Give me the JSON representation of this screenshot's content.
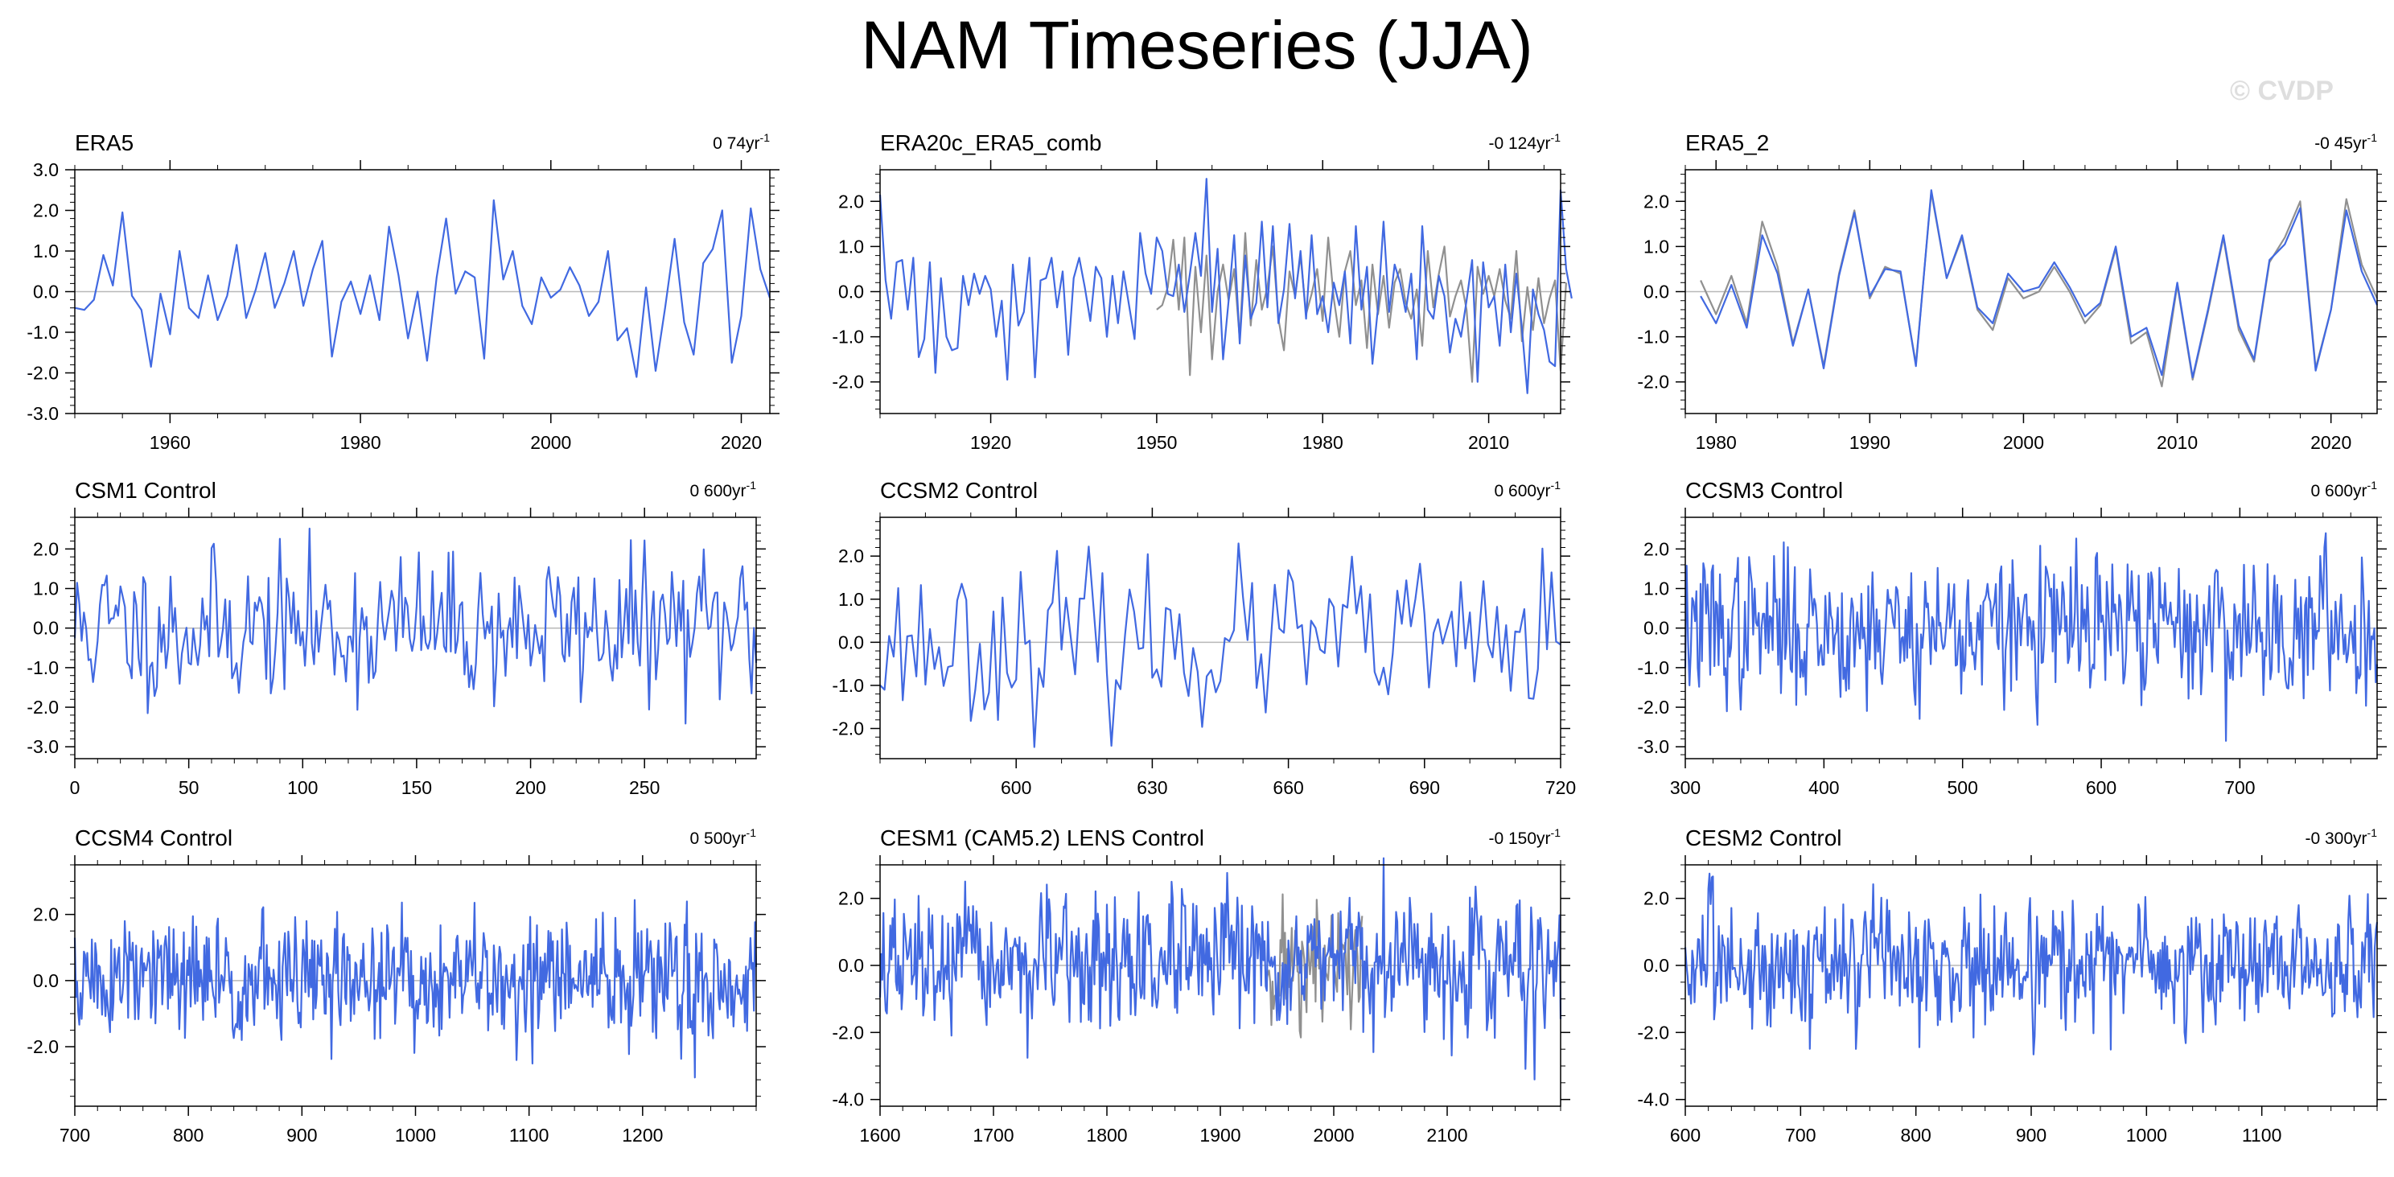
{
  "page": {
    "title": "NAM Timeseries (JJA)",
    "watermark": "© CVDP"
  },
  "colors": {
    "series_primary": "#4169e1",
    "series_secondary": "#909090",
    "zero_line": "#b8b8b8",
    "axis": "#000000"
  },
  "chart_data": [
    {
      "type": "line",
      "title": "ERA5",
      "trend": "0 74yr",
      "xlim": [
        1950,
        2023
      ],
      "ylim": [
        -3,
        3
      ],
      "xticks": [
        1960,
        1980,
        2000,
        2020
      ],
      "yticks": [
        -3,
        -2,
        -1,
        0,
        1,
        2,
        3
      ],
      "ytick_labels": [
        "-3.0",
        "-2.0",
        "-1.0",
        "0.0",
        "1.0",
        "2.0",
        "3.0"
      ],
      "x_start": 1950,
      "x_step": 1,
      "series": [
        {
          "values": [
            -0.4,
            -0.45,
            -0.2,
            0.9,
            0.15,
            1.95,
            -0.1,
            -0.45,
            -1.85,
            -0.05,
            -1.05,
            1.0,
            -0.4,
            -0.65,
            0.4,
            -0.7,
            -0.1,
            1.15,
            -0.65,
            0.05,
            0.95,
            -0.4,
            0.2,
            1.0,
            -0.35,
            0.55,
            1.25,
            -1.6,
            -0.25,
            0.25,
            -0.55,
            0.4,
            -0.7,
            1.6,
            0.4,
            -1.15,
            0.0,
            -1.7,
            0.35,
            1.8,
            -0.05,
            0.5,
            0.35,
            -1.65,
            2.25,
            0.3,
            1.0,
            -0.35,
            -0.8,
            0.35,
            -0.15,
            0.05,
            0.6,
            0.15,
            -0.6,
            -0.25,
            1.0,
            -1.2,
            -0.9,
            -2.1,
            0.1,
            -1.95,
            -0.4,
            1.3,
            -0.75,
            -1.55,
            0.7,
            1.05,
            2.0,
            -1.75,
            -0.6,
            2.05,
            0.55,
            -0.15
          ]
        }
      ]
    },
    {
      "type": "line",
      "title": "ERA20c_ERA5_comb",
      "trend": "-0 124yr",
      "xlim": [
        1900,
        2023
      ],
      "ylim": [
        -2.7,
        2.7
      ],
      "xticks": [
        1920,
        1950,
        1980,
        2010
      ],
      "yticks": [
        -2,
        -1,
        0,
        1,
        2
      ],
      "ytick_labels": [
        "-2.0",
        "-1.0",
        "0.0",
        "1.0",
        "2.0"
      ],
      "x_start": 1900,
      "x_step": 1,
      "series": [
        {
          "values": [
            2.15,
            0.25,
            -0.6,
            0.65,
            0.7,
            -0.4,
            0.75,
            -1.45,
            -1.05,
            0.65,
            -1.8,
            0.3,
            -1.0,
            -1.3,
            -1.25,
            0.35,
            -0.3,
            0.4,
            -0.05,
            0.35,
            0.05,
            -1.0,
            -0.2,
            -1.95,
            0.6,
            -0.75,
            -0.45,
            0.75,
            -1.9,
            0.25,
            0.3,
            0.75,
            -0.35,
            0.45,
            -1.4,
            0.3,
            0.75,
            0.1,
            -0.65,
            0.55,
            0.3,
            -1.0,
            0.35,
            -0.7,
            0.45,
            -0.3,
            -1.05,
            1.3,
            0.4,
            -0.05,
            1.2,
            0.9,
            -0.05,
            -0.1,
            0.6,
            -0.45,
            0.4,
            1.3,
            0.35,
            2.5,
            -0.45,
            0.95,
            -1.5,
            -0.2,
            1.25,
            -1.15,
            0.8,
            -0.6,
            -0.25,
            1.55,
            -0.35,
            1.45,
            -0.7,
            0.05,
            1.5,
            -0.15,
            0.9,
            -0.6,
            1.25,
            -0.5,
            -0.1,
            -0.9,
            0.2,
            -0.3,
            0.45,
            -1.15,
            1.45,
            -0.4,
            0.55,
            -1.6,
            -0.35,
            1.55,
            -0.45,
            0.6,
            0.2,
            -0.45,
            0.4,
            -1.5,
            1.45,
            -0.4,
            -0.6,
            0.35,
            -0.1,
            -1.35,
            -0.6,
            -1.0,
            -0.2,
            0.7,
            -2.0,
            0.65,
            -0.35,
            -0.1,
            -1.2,
            0.6,
            -0.9,
            0.4,
            -0.8,
            -2.25,
            0.05,
            -0.5,
            -0.85,
            -1.55,
            -1.65,
            2.25,
            0.5,
            -0.15
          ]
        },
        {
          "values": [
            -0.4,
            -0.3,
            0.1,
            1.15,
            -0.4,
            1.2,
            -1.85,
            0.55,
            -0.9,
            0.8,
            -1.5,
            0.0,
            0.6,
            -0.2,
            0.5,
            -1.05,
            1.3,
            -0.75,
            0.7,
            -0.4,
            0.1,
            1.0,
            -0.6,
            -1.3,
            0.45,
            -0.1,
            0.8,
            -0.5,
            -0.05,
            0.5,
            -0.65,
            1.2,
            -0.15,
            -1.0,
            0.45,
            0.9,
            -0.3,
            0.25,
            -1.25,
            0.6,
            -0.5,
            0.35,
            -0.8,
            0.2,
            0.5,
            -0.25,
            -0.6,
            0.05,
            -1.2,
            0.9,
            -0.35,
            0.4,
            1.0,
            -0.55,
            -0.1,
            0.25,
            -0.4,
            -2.0,
            0.55,
            -0.05,
            0.35,
            -0.1,
            0.5,
            -0.2,
            -0.6,
            0.9,
            -1.1,
            0.1,
            -0.85,
            0.3,
            -0.7,
            -0.15,
            0.25,
            -1.75,
            0.2
          ]
        }
      ]
    },
    {
      "type": "line",
      "title": "ERA5_2",
      "trend": "-0 45yr",
      "xlim": [
        1978,
        2023
      ],
      "ylim": [
        -2.7,
        2.7
      ],
      "xticks": [
        1980,
        1990,
        2000,
        2010,
        2020
      ],
      "yticks": [
        -2,
        -1,
        0,
        1,
        2
      ],
      "ytick_labels": [
        "-2.0",
        "-1.0",
        "0.0",
        "1.0",
        "2.0"
      ],
      "x_start": 1979,
      "x_step": 1,
      "series": [
        {
          "values": [
            -0.1,
            -0.7,
            0.15,
            -0.8,
            1.25,
            0.4,
            -1.2,
            0.05,
            -1.7,
            0.35,
            1.75,
            -0.1,
            0.5,
            0.45,
            -1.65,
            2.25,
            0.3,
            1.25,
            -0.35,
            -0.7,
            0.4,
            0.0,
            0.1,
            0.65,
            0.1,
            -0.55,
            -0.25,
            1.0,
            -1.0,
            -0.8,
            -1.85,
            0.2,
            -1.9,
            -0.4,
            1.25,
            -0.75,
            -1.5,
            0.7,
            1.05,
            1.85,
            -1.75,
            -0.4,
            1.8,
            0.45,
            -0.3
          ]
        },
        {
          "values": [
            0.25,
            -0.5,
            0.35,
            -0.7,
            1.55,
            0.55,
            -1.15,
            0.05,
            -1.65,
            0.4,
            1.8,
            -0.15,
            0.55,
            0.4,
            -1.6,
            2.2,
            0.3,
            1.2,
            -0.4,
            -0.85,
            0.3,
            -0.15,
            0.0,
            0.55,
            0.0,
            -0.7,
            -0.3,
            0.95,
            -1.15,
            -0.9,
            -2.1,
            0.15,
            -1.95,
            -0.45,
            1.2,
            -0.85,
            -1.55,
            0.65,
            1.2,
            2.0,
            -1.7,
            -0.4,
            2.05,
            0.6,
            -0.15
          ]
        }
      ]
    },
    {
      "type": "line",
      "title": "CSM1 Control",
      "trend": "0 600yr",
      "xlim": [
        0,
        299
      ],
      "ylim": [
        -3.3,
        2.8
      ],
      "xticks": [
        0,
        50,
        100,
        150,
        200,
        250
      ],
      "yticks": [
        -3,
        -2,
        -1,
        0,
        1,
        2
      ],
      "ytick_labels": [
        "-3.0",
        "-2.0",
        "-1.0",
        "0.0",
        "1.0",
        "2.0"
      ],
      "x_start": 0,
      "x_step": 1,
      "noise": {
        "seed": 11,
        "n": 300,
        "sd": 0.92
      }
    },
    {
      "type": "line",
      "title": "CCSM2 Control",
      "trend": "0 600yr",
      "xlim": [
        570,
        720
      ],
      "ylim": [
        -2.7,
        2.9
      ],
      "xticks": [
        600,
        630,
        660,
        690,
        720
      ],
      "yticks": [
        -2,
        -1,
        0,
        1,
        2
      ],
      "ytick_labels": [
        "-2.0",
        "-1.0",
        "0.0",
        "1.0",
        "2.0"
      ],
      "x_start": 570,
      "x_step": 1,
      "noise": {
        "seed": 23,
        "n": 151,
        "sd": 0.9
      }
    },
    {
      "type": "line",
      "title": "CCSM3 Control",
      "trend": "0 600yr",
      "xlim": [
        300,
        799
      ],
      "ylim": [
        -3.3,
        2.8
      ],
      "xticks": [
        300,
        400,
        500,
        600,
        700
      ],
      "yticks": [
        -3,
        -2,
        -1,
        0,
        1,
        2
      ],
      "ytick_labels": [
        "-3.0",
        "-2.0",
        "-1.0",
        "0.0",
        "1.0",
        "2.0"
      ],
      "x_start": 300,
      "x_step": 1,
      "noise": {
        "seed": 37,
        "n": 500,
        "sd": 0.92
      }
    },
    {
      "type": "line",
      "title": "CCSM4 Control",
      "trend": "0 500yr",
      "xlim": [
        700,
        1300
      ],
      "ylim": [
        -3.8,
        3.5
      ],
      "xticks": [
        700,
        800,
        900,
        1000,
        1100,
        1200
      ],
      "yticks": [
        -2,
        0,
        2
      ],
      "ytick_labels": [
        "-2.0",
        "0.0",
        "2.0"
      ],
      "x_start": 700,
      "x_step": 1,
      "noise": {
        "seed": 51,
        "n": 601,
        "sd": 0.95
      }
    },
    {
      "type": "line",
      "title": "CESM1 (CAM5.2) LENS Control",
      "trend": "-0 150yr",
      "xlim": [
        1600,
        2200
      ],
      "ylim": [
        -4.2,
        3.0
      ],
      "xticks": [
        1600,
        1700,
        1800,
        1900,
        2000,
        2100
      ],
      "yticks": [
        -4,
        -2,
        0,
        2
      ],
      "ytick_labels": [
        "-4.0",
        "-2.0",
        "0.0",
        "2.0"
      ],
      "x_start": 1600,
      "x_step": 1,
      "noise": {
        "seed": 67,
        "n": 601,
        "sd": 0.95
      },
      "secondary_noise": {
        "seed": 71,
        "x_start": 1940,
        "n": 86,
        "sd": 0.9
      }
    },
    {
      "type": "line",
      "title": "CESM2 Control",
      "trend": "-0 300yr",
      "xlim": [
        600,
        1200
      ],
      "ylim": [
        -4.2,
        3.0
      ],
      "xticks": [
        600,
        700,
        800,
        900,
        1000,
        1100
      ],
      "yticks": [
        -4,
        -2,
        0,
        2
      ],
      "ytick_labels": [
        "-4.0",
        "-2.0",
        "0.0",
        "2.0"
      ],
      "x_start": 600,
      "x_step": 1,
      "noise": {
        "seed": 83,
        "n": 601,
        "sd": 0.95
      }
    }
  ]
}
